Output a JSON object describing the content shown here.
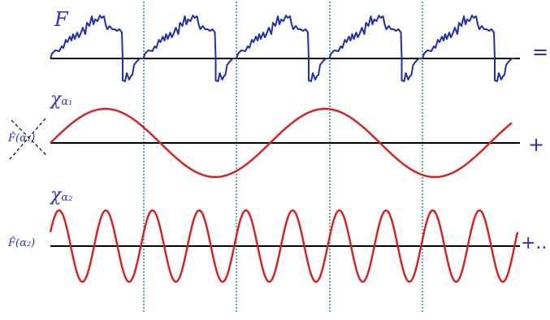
{
  "labels": {
    "f": "F",
    "chi_symbol": "χ",
    "alpha1": "α₁",
    "alpha2": "α₂",
    "coef1": "F̂(α₁)",
    "coef2": "F̂(α₂)"
  },
  "operators": {
    "equals": "=",
    "plus": "+",
    "plus_more": "+.."
  },
  "colors": {
    "signal": "#1f2fb5",
    "wave": "#e11b1b",
    "axis": "#000000",
    "divider": "#1f7fb0",
    "label": "#2a2fd0"
  }
}
